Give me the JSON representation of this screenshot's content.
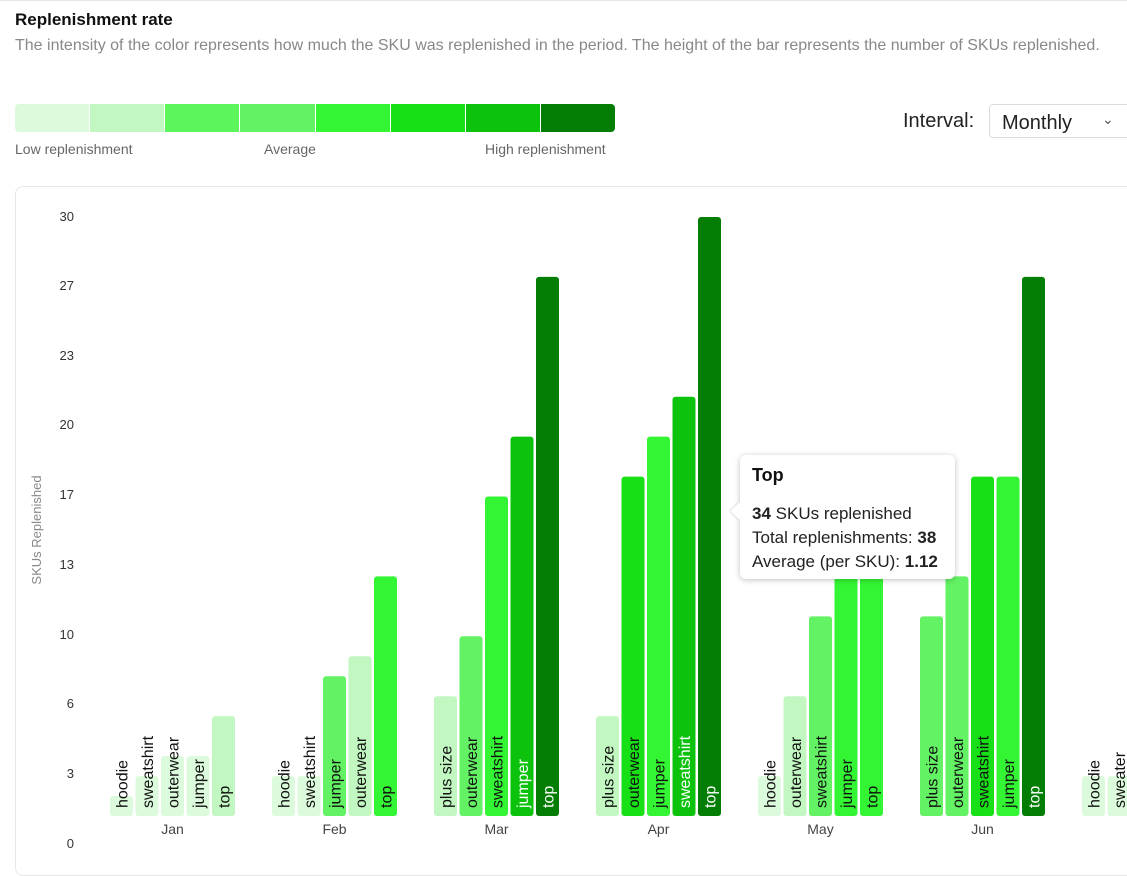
{
  "header": {
    "title": "Replenishment rate",
    "subtitle": "The intensity of the color represents how much the SKU was replenished in the period. The height of the bar represents the number of SKUs replenished."
  },
  "scale": {
    "colors": [
      "#dcfadc",
      "#c2f7c2",
      "#5cf55c",
      "#63f263",
      "#33f533",
      "#17e017",
      "#0cc20c",
      "#047d04"
    ],
    "low_label": "Low replenishment",
    "mid_label": "Average",
    "high_label": "High replenishment"
  },
  "interval": {
    "label": "Interval:",
    "value": "Monthly"
  },
  "tooltip": {
    "title": "Top",
    "skus": "34",
    "skus_text": "SKUs replenished",
    "total_label": "Total replenishments:",
    "total_value": "38",
    "avg_label": "Average (per SKU):",
    "avg_value": "1.12"
  },
  "chart_data": {
    "type": "bar",
    "ylabel": "SKUs Replenished",
    "y_ticks": [
      "0",
      "3",
      "6",
      "10",
      "13",
      "17",
      "20",
      "23",
      "27",
      "30"
    ],
    "ylim": [
      0,
      30
    ],
    "grid": false,
    "groups": [
      {
        "label": "Jan",
        "bars": [
          {
            "name": "hoodie",
            "value": 1,
            "level": 0
          },
          {
            "name": "sweatshirt",
            "value": 2,
            "level": 0
          },
          {
            "name": "outerwear",
            "value": 3,
            "level": 0
          },
          {
            "name": "jumper",
            "value": 3,
            "level": 0
          },
          {
            "name": "top",
            "value": 5,
            "level": 1
          }
        ]
      },
      {
        "label": "Feb",
        "bars": [
          {
            "name": "hoodie",
            "value": 2,
            "level": 0
          },
          {
            "name": "sweatshirt",
            "value": 2,
            "level": 0
          },
          {
            "name": "jumper",
            "value": 7,
            "level": 3
          },
          {
            "name": "outerwear",
            "value": 8,
            "level": 1
          },
          {
            "name": "top",
            "value": 12,
            "level": 4
          }
        ]
      },
      {
        "label": "Mar",
        "bars": [
          {
            "name": "plus size",
            "value": 6,
            "level": 1
          },
          {
            "name": "outerwear",
            "value": 9,
            "level": 3
          },
          {
            "name": "sweatshirt",
            "value": 16,
            "level": 4
          },
          {
            "name": "jumper",
            "value": 19,
            "level": 6
          },
          {
            "name": "top",
            "value": 27,
            "level": 7
          }
        ]
      },
      {
        "label": "Apr",
        "bars": [
          {
            "name": "plus size",
            "value": 5,
            "level": 1
          },
          {
            "name": "outerwear",
            "value": 17,
            "level": 5
          },
          {
            "name": "jumper",
            "value": 19,
            "level": 4
          },
          {
            "name": "sweatshirt",
            "value": 21,
            "level": 6
          },
          {
            "name": "top",
            "value": 30,
            "level": 7
          }
        ]
      },
      {
        "label": "May",
        "bars": [
          {
            "name": "hoodie",
            "value": 2,
            "level": 0
          },
          {
            "name": "outerwear",
            "value": 6,
            "level": 1
          },
          {
            "name": "sweatshirt",
            "value": 10,
            "level": 3
          },
          {
            "name": "jumper",
            "value": 12,
            "level": 4
          },
          {
            "name": "top",
            "value": 13,
            "level": 4
          }
        ]
      },
      {
        "label": "Jun",
        "bars": [
          {
            "name": "plus size",
            "value": 10,
            "level": 3
          },
          {
            "name": "outerwear",
            "value": 12,
            "level": 3
          },
          {
            "name": "sweatshirt",
            "value": 17,
            "level": 5
          },
          {
            "name": "jumper",
            "value": 17,
            "level": 4
          },
          {
            "name": "top",
            "value": 27,
            "level": 7
          }
        ]
      },
      {
        "label": "",
        "bars": [
          {
            "name": "hoodie",
            "value": 2,
            "level": 0
          },
          {
            "name": "sweater",
            "value": 2,
            "level": 0
          }
        ]
      }
    ]
  }
}
